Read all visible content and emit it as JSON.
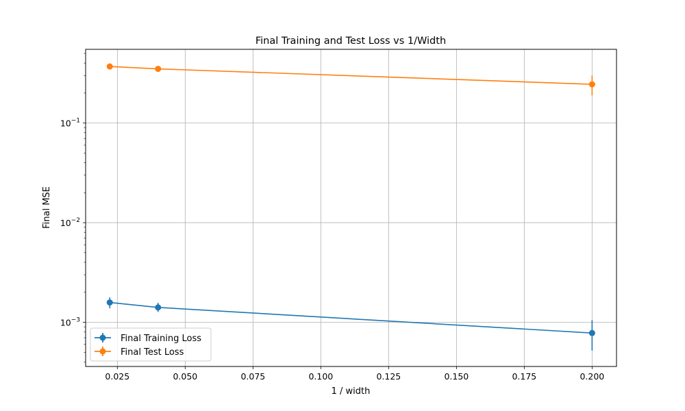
{
  "chart_data": {
    "type": "line",
    "title": "Final Training and Test Loss vs 1/Width",
    "xlabel": "1 / width",
    "ylabel": "Final MSE",
    "yscale": "log",
    "xlim": [
      0.0133,
      0.209
    ],
    "ylim": [
      0.00036,
      0.55
    ],
    "grid": true,
    "legend_position": "lower-left",
    "x_ticks": [
      {
        "value": 0.025,
        "label": "0.025"
      },
      {
        "value": 0.05,
        "label": "0.050"
      },
      {
        "value": 0.075,
        "label": "0.075"
      },
      {
        "value": 0.1,
        "label": "0.100"
      },
      {
        "value": 0.125,
        "label": "0.125"
      },
      {
        "value": 0.15,
        "label": "0.150"
      },
      {
        "value": 0.175,
        "label": "0.175"
      },
      {
        "value": 0.2,
        "label": "0.200"
      }
    ],
    "y_ticks": [
      {
        "value": 0.001,
        "base": "10",
        "exp": "−3"
      },
      {
        "value": 0.01,
        "base": "10",
        "exp": "−2"
      },
      {
        "value": 0.1,
        "base": "10",
        "exp": "−1"
      }
    ],
    "series": [
      {
        "name": "Final Training Loss",
        "color": "#1f77b4",
        "x": [
          0.0222,
          0.04,
          0.2
        ],
        "y": [
          0.00158,
          0.00141,
          0.00078
        ],
        "err_low": [
          0.00138,
          0.00127,
          0.00052
        ],
        "err_high": [
          0.00178,
          0.00157,
          0.00105
        ]
      },
      {
        "name": "Final Test Loss",
        "color": "#ff7f0e",
        "x": [
          0.0222,
          0.04,
          0.2
        ],
        "y": [
          0.37,
          0.35,
          0.245
        ],
        "err_low": [
          0.36,
          0.34,
          0.19
        ],
        "err_high": [
          0.38,
          0.36,
          0.3
        ]
      }
    ]
  }
}
